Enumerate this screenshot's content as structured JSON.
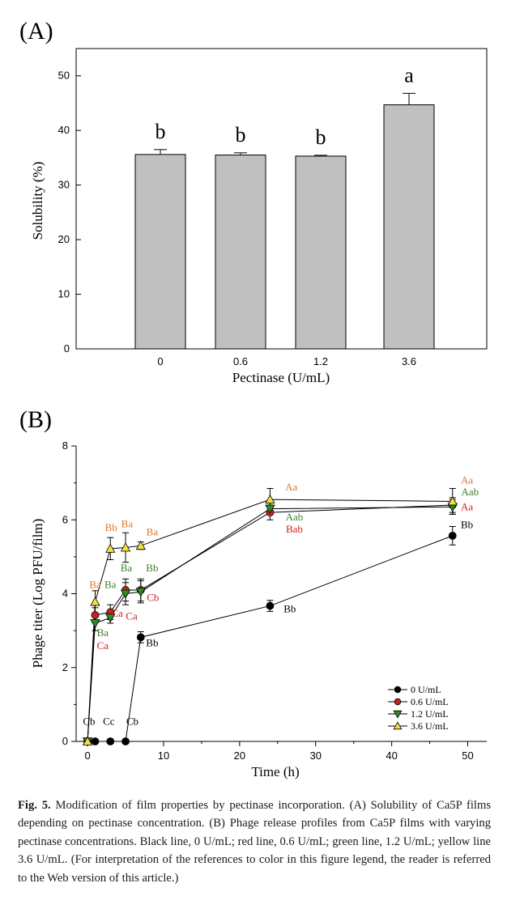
{
  "chart_data": [
    {
      "panel_label": "(A)",
      "type": "bar",
      "xlabel": "Pectinase (U/mL)",
      "ylabel": "Solubility (%)",
      "ylim": [
        0,
        55
      ],
      "yticks": [
        "0",
        "10",
        "20",
        "30",
        "40",
        "50"
      ],
      "categories": [
        "0",
        "0.6",
        "1.2",
        "3.6"
      ],
      "values": [
        35.6,
        35.5,
        35.3,
        44.7
      ],
      "errors": [
        0.9,
        0.4,
        0.15,
        2.1
      ],
      "sig_letters": [
        "b",
        "b",
        "b",
        "a"
      ],
      "bar_color": "#c0c0c0",
      "grid": false
    },
    {
      "panel_label": "(B)",
      "type": "line",
      "xlabel": "Time (h)",
      "ylabel": "Phage titer (Log PFU/film)",
      "xlim": [
        -1.5,
        52.5
      ],
      "ylim": [
        0,
        8
      ],
      "xticks": [
        "0",
        "10",
        "20",
        "30",
        "40",
        "50"
      ],
      "yticks": [
        "0",
        "2",
        "4",
        "6",
        "8"
      ],
      "x": [
        0,
        1,
        3,
        5,
        7,
        24,
        48
      ],
      "grid": false,
      "legend_position": "bottom-right",
      "series": [
        {
          "name": "0 U/mL",
          "color": "#000000",
          "marker": "circle",
          "y": [
            0,
            0,
            0,
            0,
            2.82,
            3.67,
            5.57
          ],
          "err": [
            0,
            0,
            0,
            0,
            0.15,
            0.15,
            0.25
          ]
        },
        {
          "name": "0.6 U/mL",
          "color": "#cc2020",
          "marker": "circle",
          "y": [
            0,
            3.42,
            3.5,
            4.1,
            4.1,
            6.2,
            6.4
          ],
          "err": [
            0,
            0.2,
            0.2,
            0.3,
            0.3,
            0.2,
            0.2
          ]
        },
        {
          "name": "1.2 U/mL",
          "color": "#2e8b22",
          "marker": "triangle-down",
          "y": [
            0,
            3.2,
            3.35,
            4.0,
            4.05,
            6.3,
            6.35
          ],
          "err": [
            0,
            0.2,
            0.15,
            0.3,
            0.3,
            0.15,
            0.2
          ]
        },
        {
          "name": "3.6 U/mL",
          "color": "#f0e040",
          "marker": "triangle-up",
          "y": [
            0,
            3.78,
            5.22,
            5.25,
            5.3,
            6.55,
            6.5
          ],
          "err": [
            0,
            0.3,
            0.3,
            0.4,
            0.1,
            0.3,
            0.35
          ]
        }
      ],
      "annotations": [
        {
          "text": "Cb",
          "x": 0.2,
          "y": 0.45,
          "color": "#000000"
        },
        {
          "text": "Cc",
          "x": 2.8,
          "y": 0.45,
          "color": "#000000"
        },
        {
          "text": "Cb",
          "x": 5.9,
          "y": 0.45,
          "color": "#000000"
        },
        {
          "text": "Ba",
          "x": 1.0,
          "y": 4.15,
          "color": "#e07828"
        },
        {
          "text": "Ba",
          "x": 3.0,
          "y": 4.15,
          "color": "#3f7f2f"
        },
        {
          "text": "Ba",
          "x": 2.0,
          "y": 2.85,
          "color": "#3f7f2f"
        },
        {
          "text": "Ca",
          "x": 2.0,
          "y": 2.5,
          "color": "#cc2020"
        },
        {
          "text": "Ca",
          "x": 3.9,
          "y": 3.37,
          "color": "#cc2020"
        },
        {
          "text": "Ca",
          "x": 5.8,
          "y": 3.3,
          "color": "#cc2020"
        },
        {
          "text": "Ba",
          "x": 5.1,
          "y": 4.6,
          "color": "#3f7f2f"
        },
        {
          "text": "Bb",
          "x": 8.5,
          "y": 4.6,
          "color": "#3f7f2f"
        },
        {
          "text": "Cb",
          "x": 8.6,
          "y": 3.8,
          "color": "#cc2020"
        },
        {
          "text": "Bb",
          "x": 3.1,
          "y": 5.7,
          "color": "#e07828"
        },
        {
          "text": "Ba",
          "x": 5.2,
          "y": 5.8,
          "color": "#e07828"
        },
        {
          "text": "Ba",
          "x": 8.5,
          "y": 5.58,
          "color": "#e07828"
        },
        {
          "text": "Bb",
          "x": 8.5,
          "y": 2.57,
          "color": "#000000"
        },
        {
          "text": "Aa",
          "x": 26.8,
          "y": 6.8,
          "color": "#e07828"
        },
        {
          "text": "Aab",
          "x": 27.2,
          "y": 5.98,
          "color": "#3f7f2f"
        },
        {
          "text": "Bab",
          "x": 27.2,
          "y": 5.65,
          "color": "#cc2020"
        },
        {
          "text": "Bb",
          "x": 26.6,
          "y": 3.5,
          "color": "#000000"
        },
        {
          "text": "Aa",
          "x": 49.9,
          "y": 6.98,
          "color": "#e07828"
        },
        {
          "text": "Aab",
          "x": 50.3,
          "y": 6.66,
          "color": "#3f7f2f"
        },
        {
          "text": "Aa",
          "x": 49.9,
          "y": 6.26,
          "color": "#cc2020"
        },
        {
          "text": "Bb",
          "x": 49.9,
          "y": 5.78,
          "color": "#000000"
        }
      ]
    }
  ],
  "caption": {
    "lead": "Fig. 5.",
    "text": "Modification of film properties by pectinase incorporation. (A) Solubility of Ca5P films depending on pectinase concentration. (B) Phage release profiles from Ca5P films with varying pectinase concentrations. Black line, 0 U/mL; red line, 0.6 U/mL; green line, 1.2 U/mL; yellow line 3.6 U/mL. (For interpretation of the references to color in this figure legend, the reader is referred to the Web version of this article.)"
  }
}
